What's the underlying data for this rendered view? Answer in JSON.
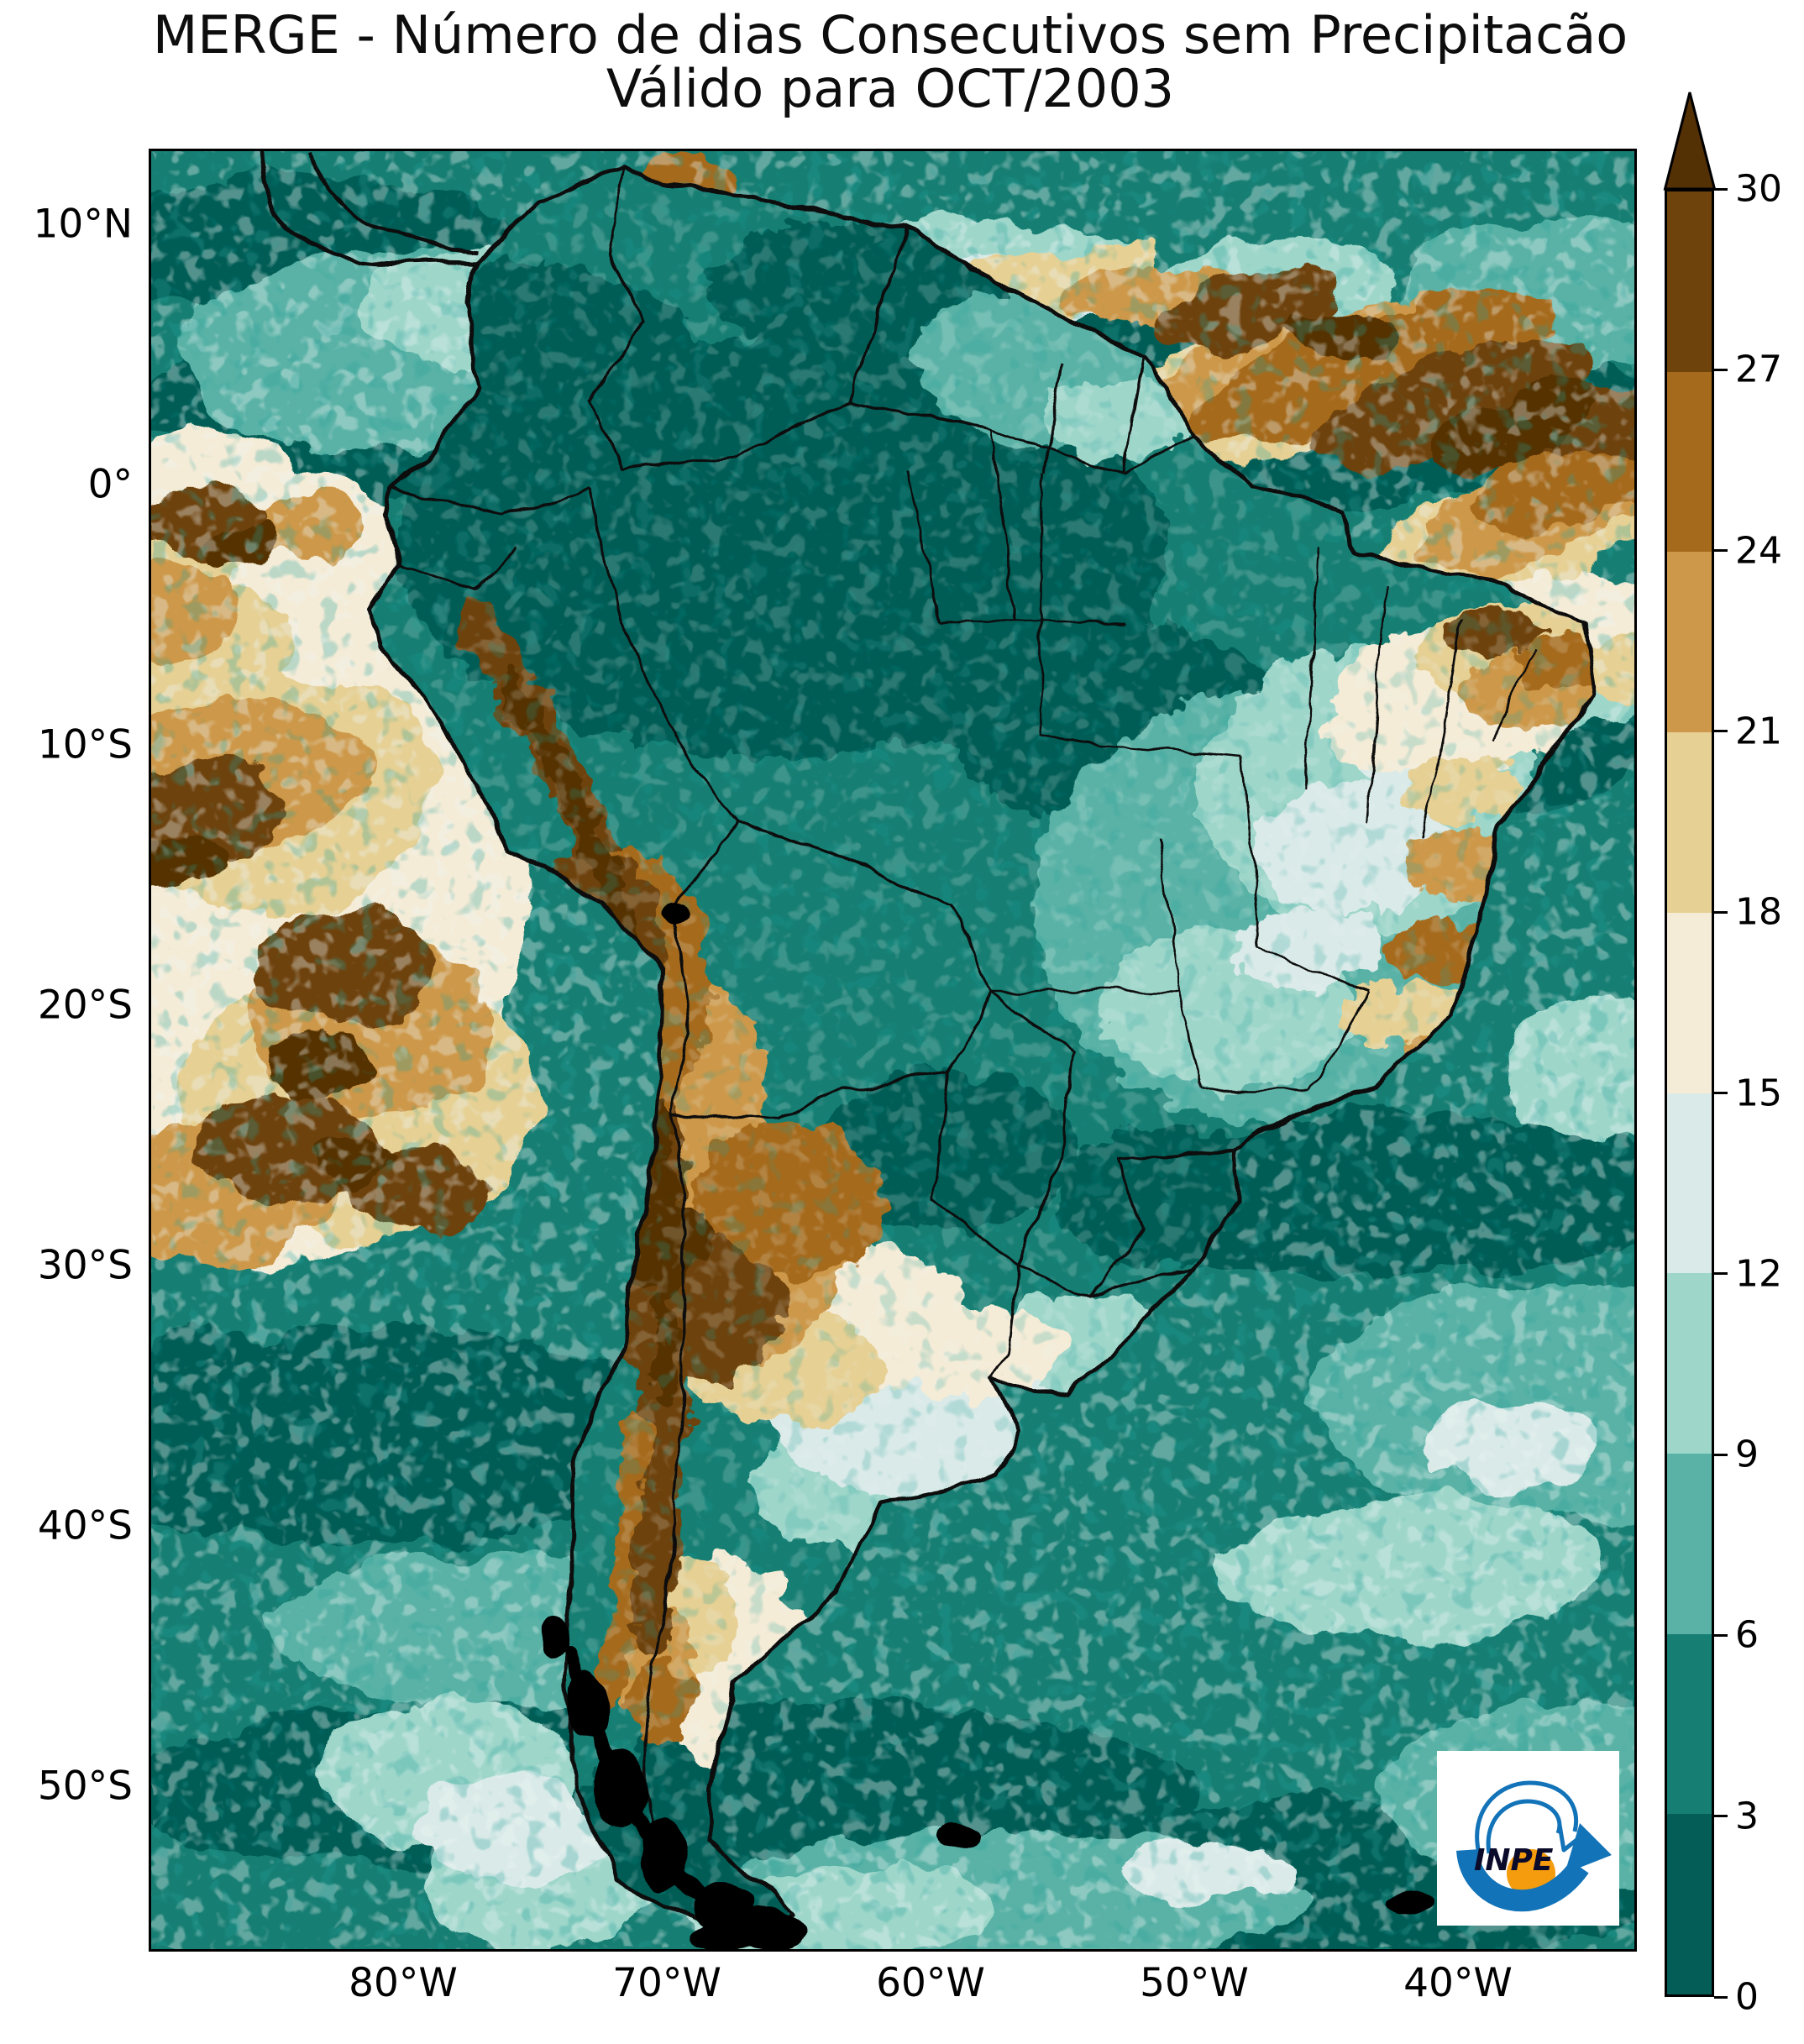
{
  "title": {
    "line1": "MERGE - Número de dias Consecutivos sem Precipitacão",
    "line2": "Válido para OCT/2003"
  },
  "axes": {
    "y_tick_labels": [
      "10°N",
      "0°",
      "10°S",
      "20°S",
      "30°S",
      "40°S",
      "50°S"
    ],
    "x_tick_labels": [
      "80°W",
      "70°W",
      "60°W",
      "50°W",
      "40°W"
    ]
  },
  "colorbar": {
    "tick_labels": [
      "0",
      "3",
      "6",
      "9",
      "12",
      "15",
      "18",
      "21",
      "24",
      "27",
      "30"
    ],
    "bin_colors": [
      "#045D56",
      "#177E73",
      "#5AB2A6",
      "#9ED6CA",
      "#D9EAE8",
      "#F5ECD7",
      "#E6D094",
      "#CD984A",
      "#A66A1D",
      "#6E430C"
    ],
    "over_color": "#543005",
    "value_min": 0,
    "value_max": 30,
    "bin_step": 3
  },
  "logo": {
    "label": "INPE",
    "blue": "#1273B8",
    "orange": "#F59B0E"
  }
}
